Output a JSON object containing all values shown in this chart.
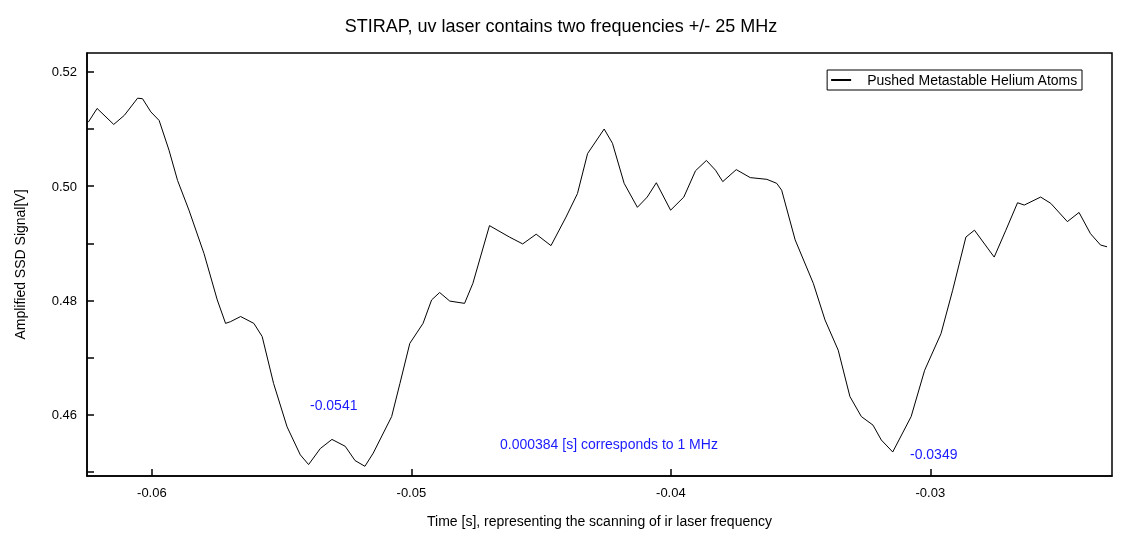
{
  "chart_data": {
    "type": "line",
    "title": "STIRAP, uv laser contains two frequencies +/- 25 MHz",
    "xlabel": "Time [s], representing the scanning of ir laser frequency",
    "ylabel": "Amplified SSD Signal[V]",
    "xlim": [
      -0.0625,
      -0.023
    ],
    "xticks": [
      -0.06,
      -0.05,
      -0.04,
      -0.03
    ],
    "ylim": [
      0.4493,
      0.5233
    ],
    "yticks": [
      {
        "value": 0.45,
        "label": null
      },
      0.46,
      {
        "value": 0.47,
        "label": null
      },
      0.48,
      {
        "value": 0.49,
        "label": null
      },
      "0.50",
      {
        "value": 0.51,
        "label": null
      },
      0.52
    ],
    "legend": "top right",
    "grid": false,
    "marker": "none",
    "line_style": "solid",
    "annotations": [
      "-0.0541",
      "-0.0349",
      "0.000384 [s] corresponds to 1 MHz"
    ],
    "series": [
      {
        "name": "Pushed Metastable Helium Atoms",
        "color": "#000000",
        "x": [
          -0.06245,
          -0.06211,
          -0.06147,
          -0.06106,
          -0.06055,
          -0.06036,
          -0.06004,
          -0.05972,
          -0.05934,
          -0.05901,
          -0.05857,
          -0.05799,
          -0.05748,
          -0.05716,
          -0.05697,
          -0.05658,
          -0.05607,
          -0.05575,
          -0.05531,
          -0.05479,
          -0.05428,
          -0.05396,
          -0.05351,
          -0.05306,
          -0.05255,
          -0.05217,
          -0.05179,
          -0.05147,
          -0.05076,
          -0.05044,
          -0.05006,
          -0.04955,
          -0.04922,
          -0.04891,
          -0.04852,
          -0.04795,
          -0.04763,
          -0.04699,
          -0.04622,
          -0.04571,
          -0.04519,
          -0.04462,
          -0.04404,
          -0.0436,
          -0.04321,
          -0.04257,
          -0.04225,
          -0.0418,
          -0.04129,
          -0.04091,
          -0.04056,
          -0.04001,
          -0.0395,
          -0.03905,
          -0.03863,
          -0.03828,
          -0.038,
          -0.03748,
          -0.03694,
          -0.0363,
          -0.03592,
          -0.03573,
          -0.03521,
          -0.03451,
          -0.03406,
          -0.03355,
          -0.0331,
          -0.03266,
          -0.03221,
          -0.03189,
          -0.03145,
          -0.03074,
          -0.03022,
          -0.02959,
          -0.02914,
          -0.02863,
          -0.0283,
          -0.02754,
          -0.02709,
          -0.02664,
          -0.02638,
          -0.02575,
          -0.02536,
          -0.02472,
          -0.02427,
          -0.02383,
          -0.02344,
          -0.02319
        ],
        "values": [
          0.5112,
          0.5136,
          0.5108,
          0.5124,
          0.5154,
          0.5153,
          0.513,
          0.5115,
          0.5063,
          0.501,
          0.4958,
          0.4882,
          0.4801,
          0.476,
          0.4763,
          0.4772,
          0.476,
          0.4737,
          0.4655,
          0.4579,
          0.453,
          0.4513,
          0.4541,
          0.4557,
          0.4545,
          0.452,
          0.451,
          0.4533,
          0.4597,
          0.4655,
          0.4725,
          0.476,
          0.4801,
          0.4814,
          0.4799,
          0.4795,
          0.483,
          0.4931,
          0.4911,
          0.4899,
          0.4916,
          0.4896,
          0.4946,
          0.4987,
          0.5057,
          0.51,
          0.5075,
          0.5005,
          0.4963,
          0.4981,
          0.5006,
          0.4958,
          0.4981,
          0.5027,
          0.5045,
          0.5028,
          0.5008,
          0.5029,
          0.5015,
          0.5012,
          0.5005,
          0.4993,
          0.4906,
          0.483,
          0.4766,
          0.4713,
          0.4632,
          0.4597,
          0.4582,
          0.4556,
          0.4535,
          0.4597,
          0.4678,
          0.4742,
          0.4818,
          0.4911,
          0.4923,
          0.4876,
          0.4923,
          0.4971,
          0.4967,
          0.4981,
          0.497,
          0.4938,
          0.4954,
          0.4917,
          0.4897,
          0.4894
        ]
      }
    ]
  }
}
